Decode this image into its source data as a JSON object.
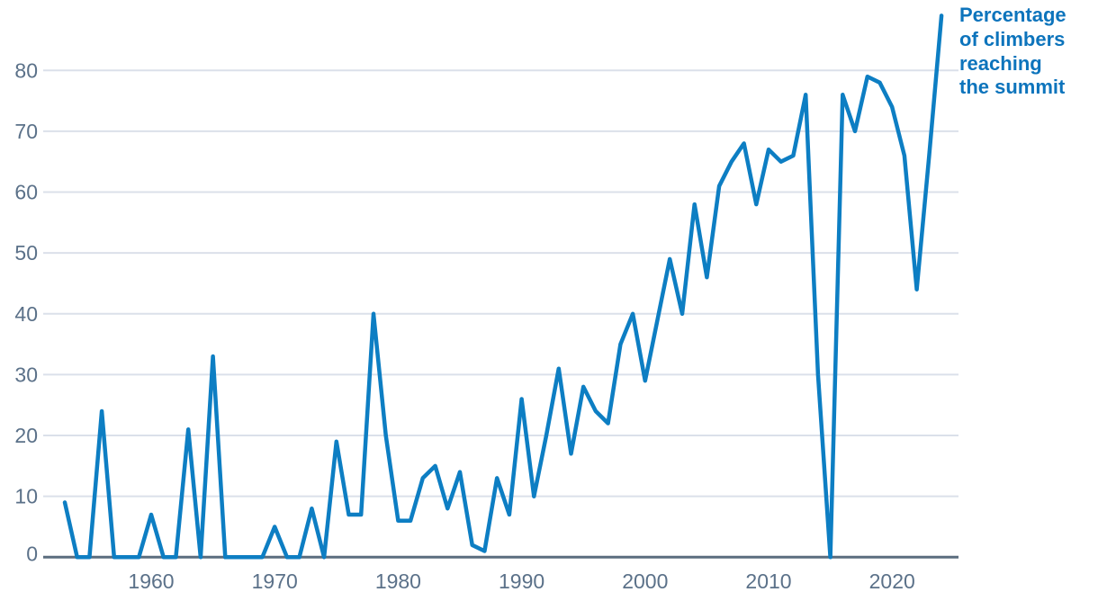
{
  "annotation": {
    "text": "Percentage\nof climbers\nreaching\nthe summit"
  },
  "colors": {
    "line": "#0d7ec3",
    "annotation_text": "#0d74bc",
    "axis_label": "#5b7189",
    "gridline": "#dbe0ea",
    "baseline": "#5b6d7e"
  },
  "chart_data": {
    "type": "line",
    "series_name": "Percentage of climbers reaching the summit",
    "x": [
      1953,
      1954,
      1955,
      1956,
      1957,
      1958,
      1959,
      1960,
      1961,
      1962,
      1963,
      1964,
      1965,
      1966,
      1967,
      1968,
      1969,
      1970,
      1971,
      1972,
      1973,
      1974,
      1975,
      1976,
      1977,
      1978,
      1979,
      1980,
      1981,
      1982,
      1983,
      1984,
      1985,
      1986,
      1987,
      1988,
      1989,
      1990,
      1991,
      1992,
      1993,
      1994,
      1995,
      1996,
      1997,
      1998,
      1999,
      2000,
      2001,
      2002,
      2003,
      2004,
      2005,
      2006,
      2007,
      2008,
      2009,
      2010,
      2011,
      2012,
      2013,
      2014,
      2015,
      2016,
      2017,
      2018,
      2019,
      2020,
      2021,
      2022,
      2023,
      2024
    ],
    "values": [
      9,
      0,
      0,
      24,
      0,
      0,
      0,
      7,
      0,
      0,
      21,
      0,
      33,
      0,
      0,
      0,
      0,
      5,
      0,
      0,
      8,
      0,
      19,
      7,
      7,
      40,
      20,
      6,
      6,
      13,
      15,
      8,
      14,
      2,
      1,
      13,
      7,
      26,
      10,
      20,
      31,
      17,
      28,
      24,
      22,
      35,
      40,
      29,
      39,
      49,
      40,
      58,
      46,
      61,
      65,
      68,
      58,
      67,
      65,
      66,
      76,
      30,
      0,
      76,
      70,
      79,
      78,
      74,
      66,
      44,
      66,
      89
    ],
    "x_ticks": [
      1960,
      1970,
      1980,
      1990,
      2000,
      2010,
      2020
    ],
    "y_ticks": [
      0,
      10,
      20,
      30,
      40,
      50,
      60,
      70,
      80
    ],
    "xlim": [
      1953,
      2024
    ],
    "ylim": [
      0,
      90
    ],
    "grid": "horizontal",
    "legend_position": "top-right"
  }
}
